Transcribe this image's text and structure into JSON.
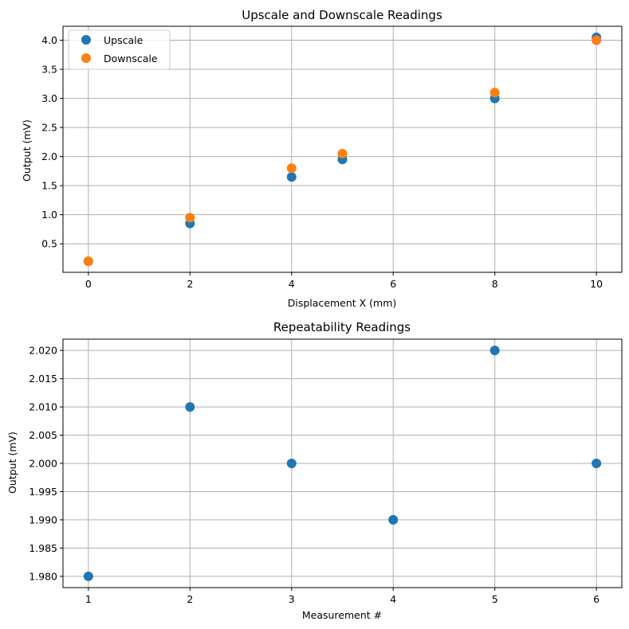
{
  "chart_data": [
    {
      "type": "scatter",
      "title": "Upscale and Downscale Readings",
      "xlabel": "Displacement X (mm)",
      "ylabel": "Output (mV)",
      "xlim": [
        -0.5,
        10.5
      ],
      "ylim": [
        0.01,
        4.24
      ],
      "xticks": [
        0,
        2,
        4,
        6,
        8,
        10
      ],
      "xtick_labels": [
        "0",
        "2",
        "4",
        "6",
        "8",
        "10"
      ],
      "yticks": [
        0.5,
        1.0,
        1.5,
        2.0,
        2.5,
        3.0,
        3.5,
        4.0
      ],
      "ytick_labels": [
        "0.5",
        "1.0",
        "1.5",
        "2.0",
        "2.5",
        "3.0",
        "3.5",
        "4.0"
      ],
      "grid": true,
      "legend": "top-left",
      "series": [
        {
          "name": "Upscale",
          "color": "#1f77b4",
          "x": [
            0,
            2,
            4,
            5,
            8,
            10
          ],
          "y": [
            0.2,
            0.85,
            1.65,
            1.95,
            3.0,
            4.05
          ]
        },
        {
          "name": "Downscale",
          "color": "#ff7f0e",
          "x": [
            0,
            2,
            4,
            5,
            8,
            10
          ],
          "y": [
            0.2,
            0.95,
            1.8,
            2.05,
            3.1,
            4.0
          ]
        }
      ]
    },
    {
      "type": "scatter",
      "title": "Repeatability Readings",
      "xlabel": "Measurement #",
      "ylabel": "Output (mV)",
      "xlim": [
        0.75,
        6.25
      ],
      "ylim": [
        1.978,
        2.022
      ],
      "xticks": [
        1,
        2,
        3,
        4,
        5,
        6
      ],
      "xtick_labels": [
        "1",
        "2",
        "3",
        "4",
        "5",
        "6"
      ],
      "yticks": [
        1.98,
        1.985,
        1.99,
        1.995,
        2.0,
        2.005,
        2.01,
        2.015,
        2.02
      ],
      "ytick_labels": [
        "1.980",
        "1.985",
        "1.990",
        "1.995",
        "2.000",
        "2.005",
        "2.010",
        "2.015",
        "2.020"
      ],
      "grid": true,
      "series": [
        {
          "name": "Repeatability",
          "color": "#1f77b4",
          "x": [
            1,
            2,
            3,
            4,
            5,
            6
          ],
          "y": [
            1.98,
            2.01,
            2.0,
            1.99,
            2.02,
            2.0
          ]
        }
      ]
    }
  ]
}
